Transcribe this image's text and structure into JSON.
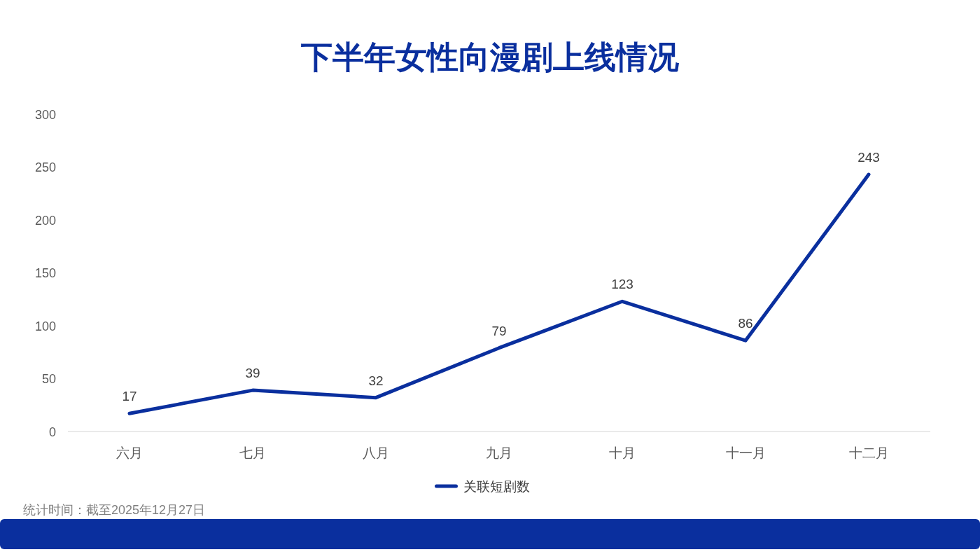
{
  "chart_data": {
    "type": "line",
    "title": "下半年女性向漫剧上线情况",
    "categories": [
      "六月",
      "七月",
      "八月",
      "九月",
      "十月",
      "十一月",
      "十二月"
    ],
    "series": [
      {
        "name": "关联短剧数",
        "color": "#0a2f9e",
        "values": [
          17,
          39,
          32,
          79,
          123,
          86,
          243
        ]
      }
    ],
    "ylim": [
      0,
      300
    ],
    "yticks": [
      0,
      50,
      100,
      150,
      200,
      250,
      300
    ],
    "grid": false,
    "legend": "bottom",
    "data_labels": true,
    "marker": "none",
    "line_style": "solid",
    "annotations": [
      "统计时间：截至2025年12月27日"
    ]
  }
}
